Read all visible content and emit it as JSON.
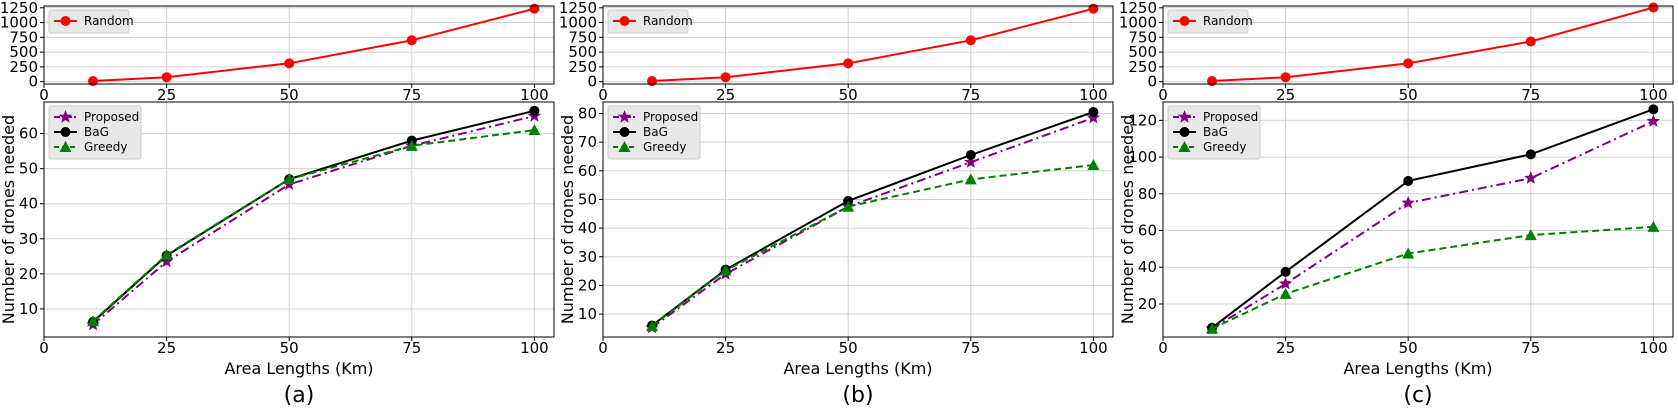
{
  "figure": {
    "captions": [
      "(a)",
      "(b)",
      "(c)"
    ],
    "colors": {
      "Random": "#ff0000",
      "Proposed": "#800080",
      "BaG": "#000000",
      "Greedy": "#008000"
    }
  },
  "chart_data": [
    {
      "panel": "(a)",
      "position": "top",
      "type": "line",
      "xlabel": "",
      "ylabel": "",
      "xlim": [
        0,
        104
      ],
      "ylim": [
        -40,
        1280
      ],
      "grid": true,
      "legend": "top-left",
      "xticks": [
        0,
        25,
        50,
        75,
        100
      ],
      "yticks": [
        0,
        250,
        500,
        750,
        1000,
        1250
      ],
      "series": [
        {
          "name": "Random",
          "x": [
            10,
            25,
            50,
            75,
            100
          ],
          "values": [
            10,
            75,
            310,
            700,
            1235
          ]
        }
      ]
    },
    {
      "panel": "(a)",
      "position": "bottom",
      "type": "line",
      "xlabel": "Area Lengths (Km)",
      "ylabel": "Number of drones needed",
      "xlim": [
        0,
        104
      ],
      "ylim": [
        2,
        69
      ],
      "grid": true,
      "legend": "top-left",
      "xticks": [
        0,
        25,
        50,
        75,
        100
      ],
      "yticks": [
        10,
        20,
        30,
        40,
        50,
        60
      ],
      "series": [
        {
          "name": "Proposed",
          "x": [
            10,
            25,
            50,
            75,
            100
          ],
          "values": [
            5.5,
            23.5,
            45.5,
            56.5,
            65
          ]
        },
        {
          "name": "BaG",
          "x": [
            10,
            25,
            50,
            75,
            100
          ],
          "values": [
            6.3,
            25.2,
            47,
            58,
            66.5
          ]
        },
        {
          "name": "Greedy",
          "x": [
            10,
            25,
            50,
            75,
            100
          ],
          "values": [
            6.5,
            25.4,
            47,
            56.5,
            61
          ]
        }
      ]
    },
    {
      "panel": "(b)",
      "position": "top",
      "type": "line",
      "xlabel": "",
      "ylabel": "",
      "xlim": [
        0,
        104
      ],
      "ylim": [
        -40,
        1280
      ],
      "grid": true,
      "legend": "top-left",
      "xticks": [
        0,
        25,
        50,
        75,
        100
      ],
      "yticks": [
        0,
        250,
        500,
        750,
        1000,
        1250
      ],
      "series": [
        {
          "name": "Random",
          "x": [
            10,
            25,
            50,
            75,
            100
          ],
          "values": [
            10,
            75,
            310,
            700,
            1235
          ]
        }
      ]
    },
    {
      "panel": "(b)",
      "position": "bottom",
      "type": "line",
      "xlabel": "Area Lengths (Km)",
      "ylabel": "Number of drones needed",
      "xlim": [
        0,
        104
      ],
      "ylim": [
        2,
        84
      ],
      "grid": true,
      "legend": "top-left",
      "xticks": [
        0,
        25,
        50,
        75,
        100
      ],
      "yticks": [
        10,
        20,
        30,
        40,
        50,
        60,
        70,
        80
      ],
      "series": [
        {
          "name": "Proposed",
          "x": [
            10,
            25,
            50,
            75,
            100
          ],
          "values": [
            5.3,
            24,
            47.5,
            63,
            78.5
          ]
        },
        {
          "name": "BaG",
          "x": [
            10,
            25,
            50,
            75,
            100
          ],
          "values": [
            6,
            25.5,
            49.5,
            65.5,
            80.5
          ]
        },
        {
          "name": "Greedy",
          "x": [
            10,
            25,
            50,
            75,
            100
          ],
          "values": [
            5.8,
            25.2,
            47.5,
            57,
            62
          ]
        }
      ]
    },
    {
      "panel": "(c)",
      "position": "top",
      "type": "line",
      "xlabel": "",
      "ylabel": "",
      "xlim": [
        0,
        104
      ],
      "ylim": [
        -40,
        1280
      ],
      "grid": true,
      "legend": "top-left",
      "xticks": [
        0,
        25,
        50,
        75,
        100
      ],
      "yticks": [
        0,
        250,
        500,
        750,
        1000,
        1250
      ],
      "series": [
        {
          "name": "Random",
          "x": [
            10,
            25,
            50,
            75,
            100
          ],
          "values": [
            10,
            75,
            310,
            680,
            1255
          ]
        }
      ]
    },
    {
      "panel": "(c)",
      "position": "bottom",
      "type": "line",
      "xlabel": "Area Lengths (Km)",
      "ylabel": "Number of drones needed",
      "xlim": [
        0,
        104
      ],
      "ylim": [
        2,
        130
      ],
      "grid": true,
      "legend": "top-left",
      "xticks": [
        0,
        25,
        50,
        75,
        100
      ],
      "yticks": [
        20,
        40,
        60,
        80,
        100,
        120
      ],
      "series": [
        {
          "name": "Proposed",
          "x": [
            10,
            25,
            50,
            75,
            100
          ],
          "values": [
            6.5,
            31,
            75,
            88.5,
            119.5
          ]
        },
        {
          "name": "BaG",
          "x": [
            10,
            25,
            50,
            75,
            100
          ],
          "values": [
            7,
            37.5,
            87,
            101.5,
            126
          ]
        },
        {
          "name": "Greedy",
          "x": [
            10,
            25,
            50,
            75,
            100
          ],
          "values": [
            6.5,
            25.5,
            47.5,
            57.5,
            62
          ]
        }
      ]
    }
  ]
}
